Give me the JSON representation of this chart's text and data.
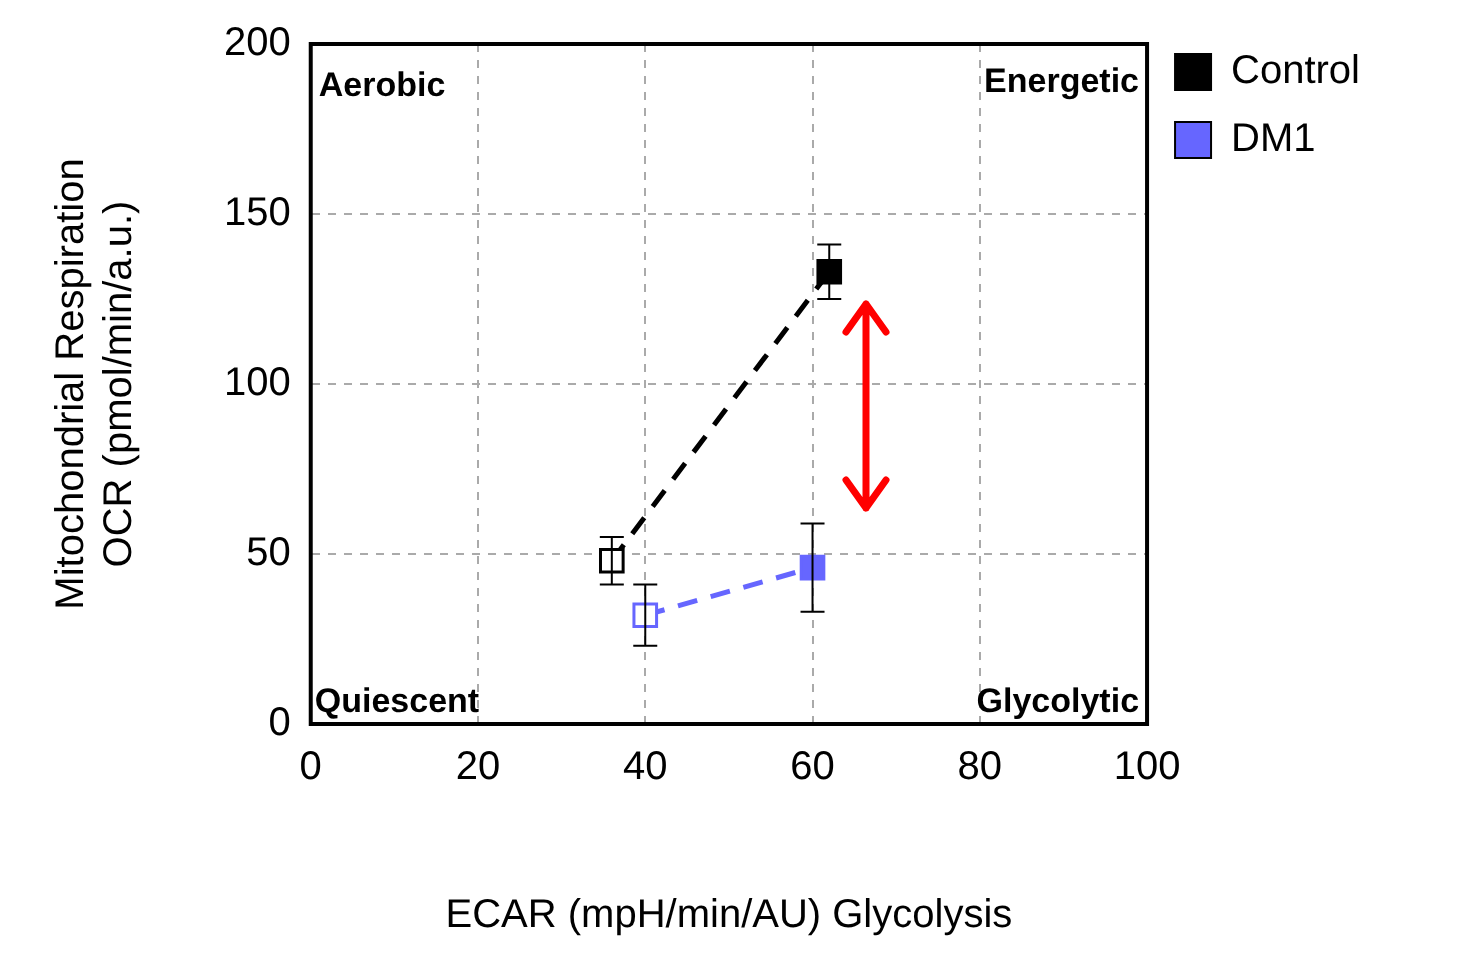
{
  "chart_data": {
    "type": "line",
    "xlabel": "ECAR (mpH/min/AU) Glycolysis",
    "ylabel": "Mitochondrial Respiration\nOCR (pmol/min/a.u.)",
    "series": [
      {
        "name": "Control",
        "color": "#000000",
        "colors": [
          "#ffffff",
          "#000000"
        ],
        "x": [
          36,
          62
        ],
        "values": [
          48,
          133
        ],
        "errors": [
          7,
          8
        ]
      },
      {
        "name": "DM1",
        "color": "#6666ff",
        "colors": [
          "#ffffff",
          "#6666ff"
        ],
        "x": [
          40,
          60
        ],
        "values": [
          32,
          46
        ],
        "errors": [
          9,
          13
        ]
      }
    ],
    "xlim": [
      0,
      100
    ],
    "xticks": [
      0,
      20,
      40,
      60,
      80,
      100
    ],
    "ylim": [
      0,
      200
    ],
    "yticks": [
      0,
      50,
      100,
      150,
      200
    ],
    "grid": true,
    "legend": "top right",
    "marker": "square",
    "line_style": "dashed",
    "annotations": [
      "Aerobic",
      "Energetic",
      "Quiescent",
      "Glycolytic"
    ]
  }
}
